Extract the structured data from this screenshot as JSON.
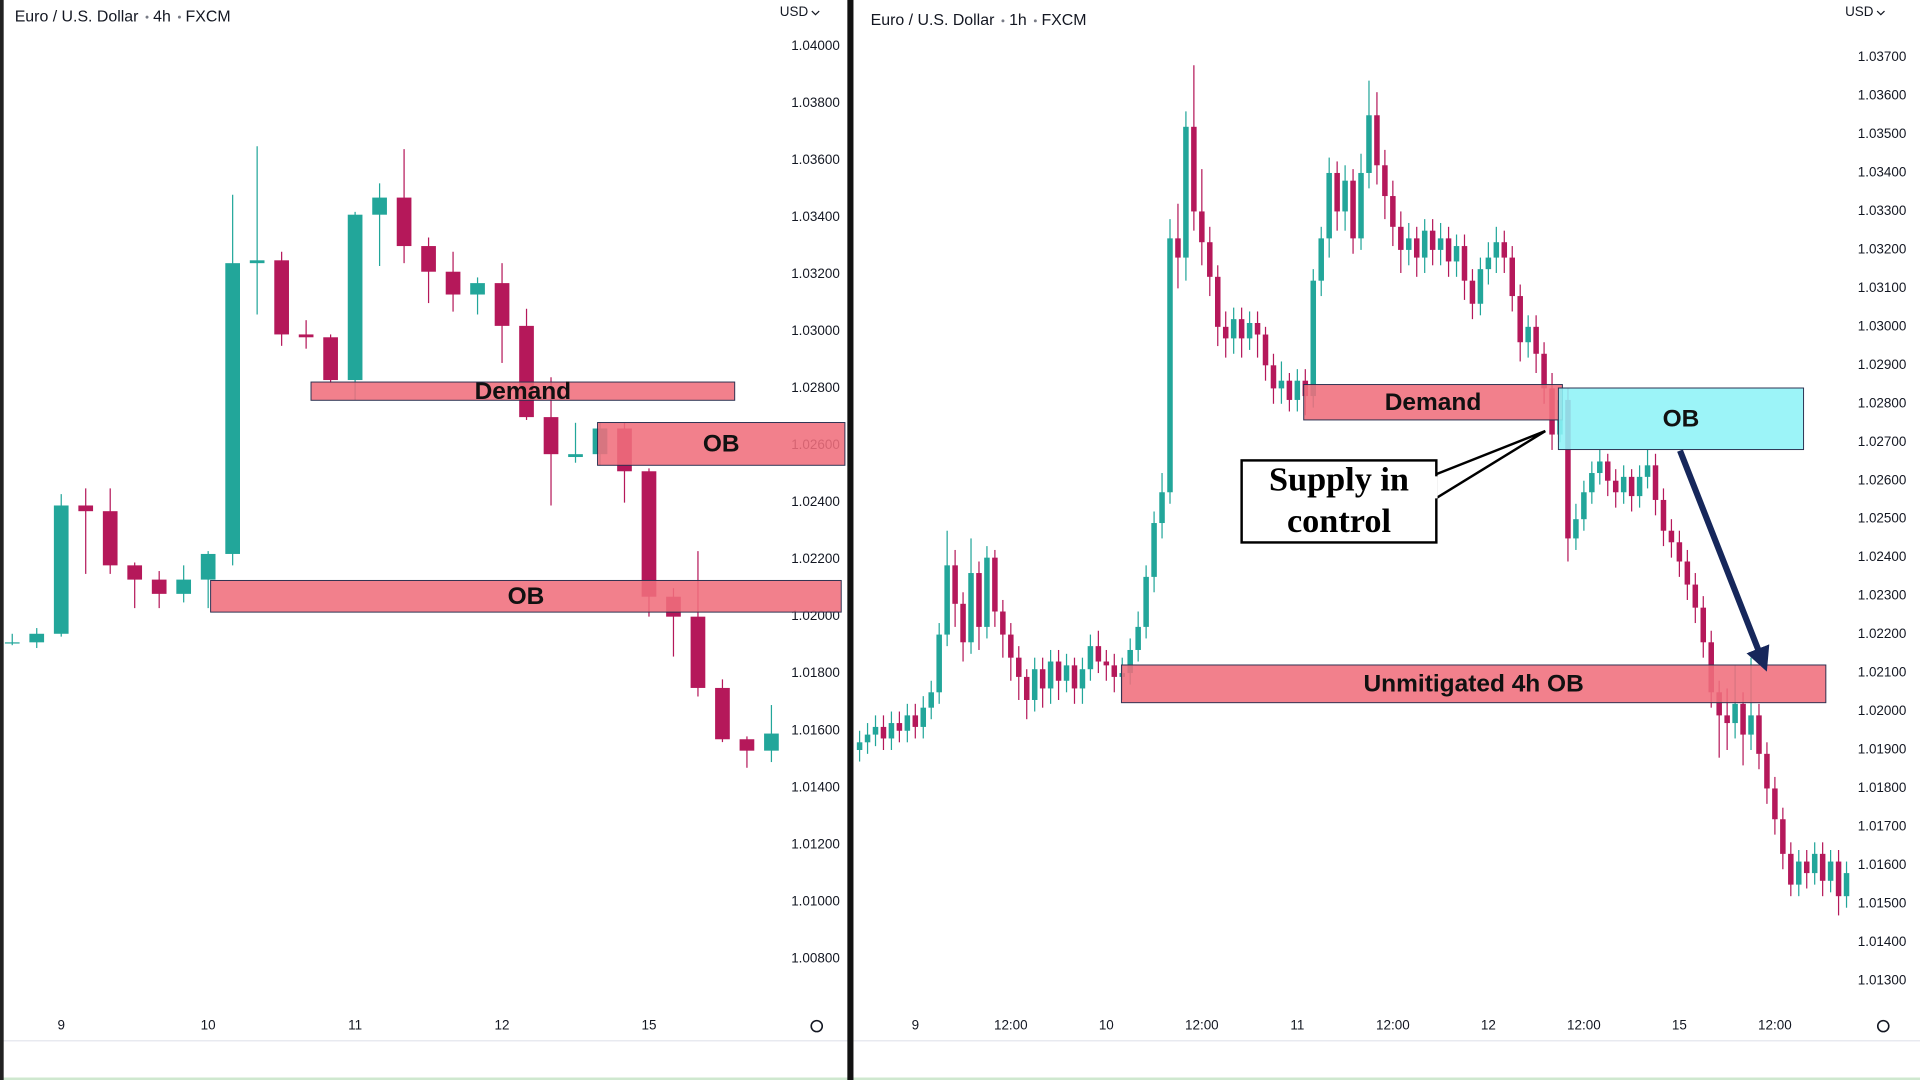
{
  "chart_data": [
    {
      "type": "candlestick",
      "symbol": "Euro / U.S. Dollar",
      "interval": "4h",
      "source": "FXCM",
      "currency": "USD",
      "categories": [
        null,
        null,
        "9",
        null,
        null,
        null,
        null,
        null,
        "10",
        null,
        null,
        null,
        null,
        null,
        "11",
        null,
        null,
        null,
        null,
        null,
        "12",
        null,
        null,
        null,
        null,
        null,
        "15",
        null,
        null,
        null,
        null,
        null
      ],
      "open": [
        1.0191,
        1.0191,
        1.0194,
        1.0239,
        1.0237,
        1.0218,
        1.0213,
        1.0208,
        1.0213,
        1.0222,
        1.0324,
        1.0325,
        1.0299,
        1.0298,
        1.0283,
        1.0341,
        1.0347,
        1.033,
        1.0321,
        1.0313,
        1.0317,
        1.0302,
        1.027,
        1.0256,
        1.0257,
        1.0266,
        1.0251,
        1.0207,
        1.02,
        1.0175,
        1.0157,
        1.0153
      ],
      "high": [
        1.0194,
        1.0196,
        1.0243,
        1.0245,
        1.0245,
        1.0219,
        1.0216,
        1.0218,
        1.0223,
        1.0348,
        1.0365,
        1.0328,
        1.0304,
        1.0299,
        1.0342,
        1.0352,
        1.0364,
        1.0333,
        1.0328,
        1.0319,
        1.0324,
        1.0308,
        1.0284,
        1.0268,
        1.0268,
        1.0268,
        1.0252,
        1.021,
        1.0223,
        1.0178,
        1.0158,
        1.0169
      ],
      "low": [
        1.019,
        1.0189,
        1.0193,
        1.0215,
        1.0215,
        1.0203,
        1.0203,
        1.0205,
        1.0203,
        1.0218,
        1.0306,
        1.0295,
        1.0294,
        1.0282,
        1.0276,
        1.0323,
        1.0324,
        1.031,
        1.0307,
        1.0306,
        1.0289,
        1.0269,
        1.0239,
        1.0254,
        1.0253,
        1.024,
        1.02,
        1.0186,
        1.0172,
        1.0156,
        1.0147,
        1.0149
      ],
      "close": [
        1.0191,
        1.0194,
        1.0239,
        1.0237,
        1.0218,
        1.0213,
        1.0208,
        1.0213,
        1.0222,
        1.0324,
        1.0325,
        1.0299,
        1.0298,
        1.0283,
        1.0341,
        1.0347,
        1.033,
        1.0321,
        1.0313,
        1.0317,
        1.0302,
        1.027,
        1.0257,
        1.0257,
        1.0266,
        1.0251,
        1.0207,
        1.02,
        1.0175,
        1.0157,
        1.0153,
        1.0159
      ],
      "up_color": "#22a69a",
      "down_color": "#b5185a",
      "ylim": [
        1.0064,
        1.0406
      ],
      "yticks": [
        {
          "value": 1.04,
          "label": "1.04000"
        },
        {
          "value": 1.038,
          "label": "1.03800"
        },
        {
          "value": 1.036,
          "label": "1.03600"
        },
        {
          "value": 1.034,
          "label": "1.03400"
        },
        {
          "value": 1.032,
          "label": "1.03200"
        },
        {
          "value": 1.03,
          "label": "1.03000"
        },
        {
          "value": 1.028,
          "label": "1.02800"
        },
        {
          "value": 1.026,
          "label": "1.02600"
        },
        {
          "value": 1.024,
          "label": "1.02400"
        },
        {
          "value": 1.022,
          "label": "1.02200"
        },
        {
          "value": 1.02,
          "label": "1.02000"
        },
        {
          "value": 1.018,
          "label": "1.01800"
        },
        {
          "value": 1.016,
          "label": "1.01600"
        },
        {
          "value": 1.014,
          "label": "1.01400"
        },
        {
          "value": 1.012,
          "label": "1.01200"
        },
        {
          "value": 1.01,
          "label": "1.01000"
        },
        {
          "value": 1.008,
          "label": "1.00800"
        }
      ],
      "grid": false,
      "zones": [
        {
          "text": "Demand",
          "x_range": [
            12.2,
            29.5
          ],
          "y_range": [
            1.02759,
            1.02823
          ],
          "color": "#f06e7c"
        },
        {
          "text": "OB",
          "x_range": [
            23.9,
            34
          ],
          "y_range": [
            1.02531,
            1.02681
          ],
          "color": "#f06e7c"
        },
        {
          "text": "OB",
          "x_range": [
            8.1,
            33.85
          ],
          "y_range": [
            1.02016,
            1.02127
          ],
          "color": "#f06e7c"
        }
      ]
    },
    {
      "type": "candlestick",
      "symbol": "Euro / U.S. Dollar",
      "interval": "1h",
      "source": "FXCM",
      "currency": "USD",
      "categories": [
        null,
        null,
        null,
        null,
        null,
        null,
        null,
        "9",
        null,
        null,
        null,
        null,
        null,
        null,
        null,
        null,
        null,
        null,
        null,
        "12:00",
        null,
        null,
        null,
        null,
        null,
        null,
        null,
        null,
        null,
        null,
        null,
        "10",
        null,
        null,
        null,
        null,
        null,
        null,
        null,
        null,
        null,
        null,
        null,
        "12:00",
        null,
        null,
        null,
        null,
        null,
        null,
        null,
        null,
        null,
        null,
        null,
        "11",
        null,
        null,
        null,
        null,
        null,
        null,
        null,
        null,
        null,
        null,
        null,
        "12:00",
        null,
        null,
        null,
        null,
        null,
        null,
        null,
        null,
        null,
        null,
        null,
        "12",
        null,
        null,
        null,
        null,
        null,
        null,
        null,
        null,
        null,
        null,
        null,
        "12:00",
        null,
        null,
        null,
        null,
        null,
        null,
        null,
        null,
        null,
        null,
        null,
        "15",
        null,
        null,
        null,
        null,
        null,
        null,
        null,
        null,
        null,
        null,
        null,
        "12:00",
        null,
        null,
        null,
        null,
        null,
        null,
        null,
        null,
        null
      ],
      "open": [
        1.019,
        1.0192,
        1.0194,
        1.0196,
        1.0193,
        1.0197,
        1.0195,
        1.0199,
        1.0196,
        1.0201,
        1.0205,
        1.022,
        1.0238,
        1.0228,
        1.0218,
        1.0236,
        1.0222,
        1.024,
        1.0226,
        1.022,
        1.0214,
        1.0209,
        1.0203,
        1.0211,
        1.0206,
        1.0213,
        1.0208,
        1.0212,
        1.0206,
        1.0211,
        1.0217,
        1.0213,
        1.0212,
        1.0209,
        1.021,
        1.0216,
        1.0222,
        1.0235,
        1.0249,
        1.0257,
        1.0323,
        1.0318,
        1.0352,
        1.033,
        1.0322,
        1.0313,
        1.03,
        1.0297,
        1.0302,
        1.0297,
        1.0301,
        1.0298,
        1.029,
        1.0284,
        1.0286,
        1.0281,
        1.0286,
        1.0282,
        1.0312,
        1.0323,
        1.034,
        1.033,
        1.0338,
        1.0323,
        1.034,
        1.0355,
        1.0342,
        1.0334,
        1.0326,
        1.032,
        1.0323,
        1.0318,
        1.0325,
        1.032,
        1.0323,
        1.0317,
        1.0321,
        1.0312,
        1.0306,
        1.0315,
        1.0318,
        1.0322,
        1.0318,
        1.0308,
        1.0296,
        1.03,
        1.0293,
        1.0284,
        1.0272,
        1.0281,
        1.0245,
        1.025,
        1.0257,
        1.0262,
        1.0265,
        1.026,
        1.0257,
        1.0261,
        1.0256,
        1.0261,
        1.0264,
        1.0255,
        1.0247,
        1.0244,
        1.0239,
        1.0233,
        1.0227,
        1.0218,
        1.0205,
        1.0199,
        1.0197,
        1.0202,
        1.0194,
        1.0199,
        1.0189,
        1.018,
        1.0172,
        1.0163,
        1.0155,
        1.0161,
        1.0158,
        1.0163,
        1.0156,
        1.0161,
        1.0152
      ],
      "high": [
        1.0195,
        1.0197,
        1.0199,
        1.0199,
        1.02,
        1.02,
        1.0202,
        1.0202,
        1.0204,
        1.0208,
        1.0223,
        1.0247,
        1.0242,
        1.0231,
        1.0245,
        1.0239,
        1.0243,
        1.0242,
        1.0229,
        1.0223,
        1.0217,
        1.0211,
        1.0214,
        1.0214,
        1.0216,
        1.0216,
        1.0215,
        1.0214,
        1.0214,
        1.022,
        1.0221,
        1.0216,
        1.0215,
        1.0214,
        1.0219,
        1.0226,
        1.0238,
        1.0252,
        1.0262,
        1.0328,
        1.0332,
        1.0356,
        1.0368,
        1.0341,
        1.0326,
        1.0316,
        1.0304,
        1.0305,
        1.0305,
        1.0304,
        1.0304,
        1.03,
        1.0293,
        1.0291,
        1.0288,
        1.0289,
        1.0289,
        1.0315,
        1.0326,
        1.0344,
        1.0343,
        1.0342,
        1.0341,
        1.0345,
        1.0364,
        1.0361,
        1.0346,
        1.0338,
        1.033,
        1.0327,
        1.0326,
        1.0328,
        1.0328,
        1.0327,
        1.0326,
        1.0324,
        1.0324,
        1.0315,
        1.0318,
        1.0322,
        1.0326,
        1.0325,
        1.0321,
        1.0311,
        1.0303,
        1.0303,
        1.0296,
        1.0288,
        1.0284,
        1.0284,
        1.0254,
        1.026,
        1.0265,
        1.0268,
        1.0267,
        1.0263,
        1.0264,
        1.0263,
        1.0264,
        1.0268,
        1.0267,
        1.0258,
        1.025,
        1.0247,
        1.0242,
        1.0236,
        1.023,
        1.0221,
        1.0208,
        1.0206,
        1.0212,
        1.0205,
        1.0214,
        1.0202,
        1.0192,
        1.0183,
        1.0175,
        1.0166,
        1.0164,
        1.0164,
        1.0166,
        1.0166,
        1.0164,
        1.0164,
        1.0161
      ],
      "low": [
        1.0187,
        1.0189,
        1.0191,
        1.019,
        1.019,
        1.0192,
        1.0192,
        1.0193,
        1.0193,
        1.0198,
        1.0202,
        1.0217,
        1.0222,
        1.0213,
        1.0215,
        1.0216,
        1.0219,
        1.0222,
        1.0214,
        1.0208,
        1.0203,
        1.0198,
        1.02,
        1.0201,
        1.0202,
        1.0203,
        1.0205,
        1.0202,
        1.0202,
        1.0208,
        1.021,
        1.0208,
        1.0205,
        1.0203,
        1.0207,
        1.0213,
        1.0219,
        1.0231,
        1.0245,
        1.0254,
        1.031,
        1.0312,
        1.0325,
        1.0316,
        1.0308,
        1.0295,
        1.0292,
        1.0293,
        1.0292,
        1.0294,
        1.0292,
        1.0286,
        1.028,
        1.028,
        1.0278,
        1.0278,
        1.0277,
        1.0279,
        1.0308,
        1.0318,
        1.0325,
        1.0325,
        1.0319,
        1.032,
        1.0336,
        1.0337,
        1.0328,
        1.0321,
        1.0314,
        1.0316,
        1.0313,
        1.0314,
        1.0316,
        1.0316,
        1.0313,
        1.0313,
        1.0307,
        1.0302,
        1.0303,
        1.0311,
        1.0314,
        1.0314,
        1.0304,
        1.0291,
        1.0292,
        1.0288,
        1.028,
        1.0268,
        1.027,
        1.0239,
        1.0242,
        1.0247,
        1.0254,
        1.0259,
        1.0256,
        1.0253,
        1.0254,
        1.0252,
        1.0253,
        1.0258,
        1.0251,
        1.0243,
        1.024,
        1.0235,
        1.0229,
        1.0223,
        1.0214,
        1.0201,
        1.0188,
        1.019,
        1.0193,
        1.0186,
        1.019,
        1.0185,
        1.0176,
        1.0168,
        1.0159,
        1.0152,
        1.0152,
        1.0154,
        1.0155,
        1.0152,
        1.0153,
        1.0147,
        1.0149
      ],
      "close": [
        1.0192,
        1.0194,
        1.0196,
        1.0193,
        1.0197,
        1.0195,
        1.0199,
        1.0196,
        1.0201,
        1.0205,
        1.022,
        1.0238,
        1.0228,
        1.0218,
        1.0236,
        1.0222,
        1.024,
        1.0226,
        1.022,
        1.0214,
        1.0209,
        1.0203,
        1.0211,
        1.0206,
        1.0213,
        1.0208,
        1.0212,
        1.0206,
        1.0211,
        1.0217,
        1.0213,
        1.0212,
        1.0209,
        1.021,
        1.0216,
        1.0222,
        1.0235,
        1.0249,
        1.0257,
        1.0323,
        1.0318,
        1.0352,
        1.033,
        1.0322,
        1.0313,
        1.03,
        1.0297,
        1.0302,
        1.0297,
        1.0301,
        1.0298,
        1.029,
        1.0284,
        1.0286,
        1.0281,
        1.0286,
        1.0282,
        1.0312,
        1.0323,
        1.034,
        1.033,
        1.0338,
        1.0323,
        1.034,
        1.0355,
        1.0342,
        1.0334,
        1.0326,
        1.032,
        1.0323,
        1.0318,
        1.0325,
        1.032,
        1.0323,
        1.0317,
        1.0321,
        1.0312,
        1.0306,
        1.0315,
        1.0318,
        1.0322,
        1.0318,
        1.0308,
        1.0296,
        1.03,
        1.0293,
        1.0284,
        1.0272,
        1.0281,
        1.0245,
        1.025,
        1.0257,
        1.0262,
        1.0265,
        1.026,
        1.0257,
        1.0261,
        1.0256,
        1.0261,
        1.0264,
        1.0255,
        1.0247,
        1.0244,
        1.0239,
        1.0233,
        1.0227,
        1.0218,
        1.0205,
        1.0199,
        1.0197,
        1.0202,
        1.0194,
        1.0199,
        1.0189,
        1.018,
        1.0172,
        1.0163,
        1.0155,
        1.0161,
        1.0158,
        1.0163,
        1.0156,
        1.0161,
        1.0152,
        1.0158
      ],
      "up_color": "#22a69a",
      "down_color": "#b5185a",
      "ylim": [
        1.0125,
        1.0375
      ],
      "yticks": [
        {
          "value": 1.037,
          "label": "1.03700"
        },
        {
          "value": 1.036,
          "label": "1.03600"
        },
        {
          "value": 1.035,
          "label": "1.03500"
        },
        {
          "value": 1.034,
          "label": "1.03400"
        },
        {
          "value": 1.033,
          "label": "1.03300"
        },
        {
          "value": 1.032,
          "label": "1.03200"
        },
        {
          "value": 1.031,
          "label": "1.03100"
        },
        {
          "value": 1.03,
          "label": "1.03000"
        },
        {
          "value": 1.029,
          "label": "1.02900"
        },
        {
          "value": 1.028,
          "label": "1.02800"
        },
        {
          "value": 1.027,
          "label": "1.02700"
        },
        {
          "value": 1.026,
          "label": "1.02600"
        },
        {
          "value": 1.025,
          "label": "1.02500"
        },
        {
          "value": 1.024,
          "label": "1.02400"
        },
        {
          "value": 1.023,
          "label": "1.02300"
        },
        {
          "value": 1.022,
          "label": "1.02200"
        },
        {
          "value": 1.021,
          "label": "1.02100"
        },
        {
          "value": 1.02,
          "label": "1.02000"
        },
        {
          "value": 1.019,
          "label": "1.01900"
        },
        {
          "value": 1.018,
          "label": "1.01800"
        },
        {
          "value": 1.017,
          "label": "1.01700"
        },
        {
          "value": 1.016,
          "label": "1.01600"
        },
        {
          "value": 1.015,
          "label": "1.01500"
        },
        {
          "value": 1.014,
          "label": "1.01400"
        },
        {
          "value": 1.013,
          "label": "1.01300"
        }
      ],
      "grid": false,
      "zones": [
        {
          "text": "Demand",
          "x_range": [
            55.8,
            88.3
          ],
          "y_range": [
            1.02758,
            1.0285
          ],
          "color": "#f06e7c"
        },
        {
          "text": "OB",
          "x_range": [
            87.8,
            118.6
          ],
          "y_range": [
            1.02681,
            1.02841
          ],
          "color": "#8ef2f7"
        },
        {
          "text": "Unmitigated 4h OB",
          "x_range": [
            32.9,
            121.4
          ],
          "y_range": [
            1.02023,
            1.02121
          ],
          "color": "#f06e7c"
        }
      ],
      "callouts": [
        {
          "lines": [
            "Supply in",
            "control"
          ]
        }
      ]
    }
  ]
}
